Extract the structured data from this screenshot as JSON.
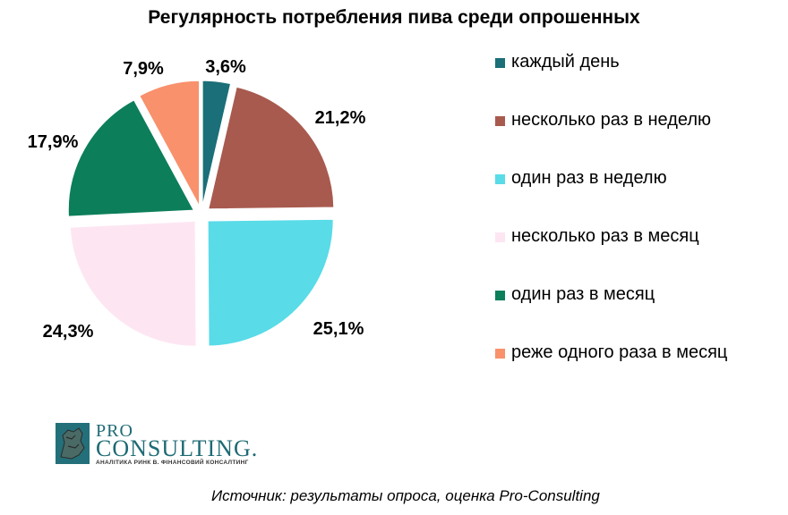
{
  "chart_data": {
    "type": "pie",
    "title": "Регулярность потребления пива среди опрошенных",
    "categories": [
      "каждый день",
      "несколько раз в неделю",
      "один раз в неделю",
      "несколько раз в месяц",
      "один раз в месяц",
      "реже одного раза в месяц"
    ],
    "values": [
      3.6,
      21.2,
      25.1,
      24.3,
      17.9,
      7.9
    ],
    "labels": [
      "3,6%",
      "21,2%",
      "25,1%",
      "24,3%",
      "17,9%",
      "7,9%"
    ],
    "colors": [
      "#1a6f78",
      "#a85a4e",
      "#59dbe8",
      "#fde6f2",
      "#0c7e5a",
      "#f8916c"
    ],
    "exploded": true,
    "legend_position": "right"
  },
  "logo": {
    "line1": "PRO",
    "line2": "CONSULTING.",
    "tagline": "АНАЛІТИКА РИНК В. ФІНАНСОВИЙ КОНСАЛТИНГ"
  },
  "source": "Источник: результаты опроса, оценка Pro-Consulting"
}
